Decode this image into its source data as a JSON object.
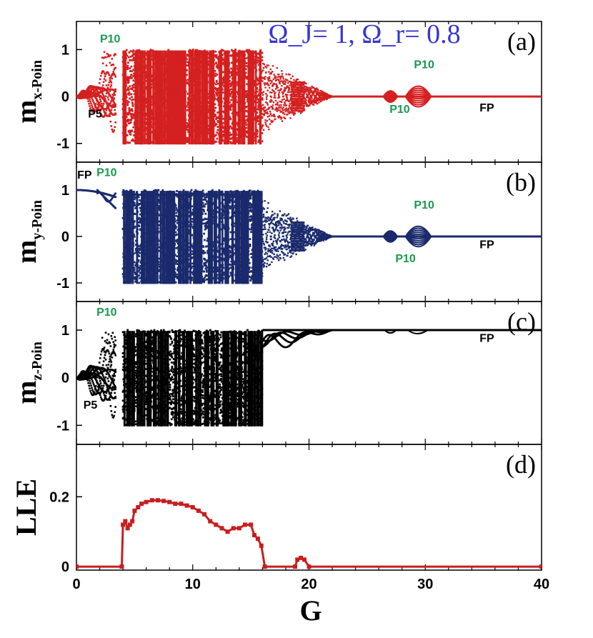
{
  "chart_data": [
    {
      "type": "scatter",
      "panel_label": "(a)",
      "ylabel": "m",
      "ylabel_sub": "x-Poin",
      "xlim": [
        0,
        40
      ],
      "ylim": [
        -1.4,
        1.6
      ],
      "yticks": [
        "-1",
        "0",
        "1"
      ],
      "yticks_values": [
        -1,
        0,
        1
      ],
      "color": "#d42020",
      "parameter_text": "Ω_J= 1, Ω_r= 0.8",
      "parameter_color": "#3535d8",
      "regions": [
        {
          "x": [
            0,
            3.2
          ],
          "kind": "period",
          "note": "P5 / P10 branches around 0"
        },
        {
          "x": [
            4,
            16
          ],
          "kind": "chaos",
          "y": [
            -1,
            1
          ]
        },
        {
          "x": [
            16,
            22
          ],
          "kind": "transition"
        },
        {
          "x": [
            22,
            40
          ],
          "kind": "fixed point",
          "y": 0
        },
        {
          "x": [
            26.5,
            27.5
          ],
          "kind": "period",
          "note": "P10 bubble"
        },
        {
          "x": [
            28.5,
            30.5
          ],
          "kind": "period",
          "note": "P10 bubble"
        }
      ],
      "annotations": [
        {
          "text": "P10",
          "x": 2.9,
          "y": 1.15,
          "color": "#1a9a50"
        },
        {
          "text": "P5",
          "x": 1.6,
          "y": -0.45,
          "color": "#000000"
        },
        {
          "text": "P10",
          "x": 29.9,
          "y": 0.6,
          "color": "#1a9a50"
        },
        {
          "text": "P10",
          "x": 27.8,
          "y": -0.35,
          "color": "#1a9a50"
        },
        {
          "text": "FP",
          "x": 35.3,
          "y": -0.32,
          "color": "#000000"
        }
      ]
    },
    {
      "type": "scatter",
      "panel_label": "(b)",
      "ylabel": "m",
      "ylabel_sub": "y-Poin",
      "xlim": [
        0,
        40
      ],
      "ylim": [
        -1.4,
        1.6
      ],
      "yticks": [
        "-1",
        "0",
        "1"
      ],
      "yticks_values": [
        -1,
        0,
        1
      ],
      "color": "#1a2a6c",
      "regions": [
        {
          "x": [
            0,
            3.2
          ],
          "kind": "fixed point / period",
          "y": 1
        },
        {
          "x": [
            4,
            16
          ],
          "kind": "chaos",
          "y": [
            -1,
            1
          ]
        },
        {
          "x": [
            16,
            22
          ],
          "kind": "transition"
        },
        {
          "x": [
            22,
            40
          ],
          "kind": "fixed point",
          "y": 0
        },
        {
          "x": [
            26.5,
            27.5
          ],
          "kind": "period",
          "note": "P10 bubble"
        },
        {
          "x": [
            28.5,
            30.5
          ],
          "kind": "period",
          "note": "P10 bubble"
        }
      ],
      "annotations": [
        {
          "text": "FP",
          "x": 0.7,
          "y": 1.25,
          "color": "#000000"
        },
        {
          "text": "P10",
          "x": 2.6,
          "y": 1.3,
          "color": "#1a9a50"
        },
        {
          "text": "P10",
          "x": 29.9,
          "y": 0.6,
          "color": "#1a9a50"
        },
        {
          "text": "P10",
          "x": 28.3,
          "y": -0.55,
          "color": "#1a9a50"
        },
        {
          "text": "FP",
          "x": 35.3,
          "y": -0.25,
          "color": "#000000"
        }
      ]
    },
    {
      "type": "scatter",
      "panel_label": "(c)",
      "ylabel": "m",
      "ylabel_sub": "z-Poin",
      "xlim": [
        0,
        40
      ],
      "ylim": [
        -1.4,
        1.6
      ],
      "yticks": [
        "-1",
        "0",
        "1"
      ],
      "yticks_values": [
        -1,
        0,
        1
      ],
      "color": "#000000",
      "regions": [
        {
          "x": [
            0,
            3.2
          ],
          "kind": "period",
          "note": "P5 / P10 branches around 0"
        },
        {
          "x": [
            4,
            16
          ],
          "kind": "chaos",
          "y": [
            -1,
            1
          ]
        },
        {
          "x": [
            16,
            22
          ],
          "kind": "transition",
          "y": [
            0.4,
            1
          ]
        },
        {
          "x": [
            22,
            40
          ],
          "kind": "fixed point",
          "y": 1
        }
      ],
      "annotations": [
        {
          "text": "P10",
          "x": 2.6,
          "y": 1.3,
          "color": "#1a9a50"
        },
        {
          "text": "P5",
          "x": 1.2,
          "y": -0.65,
          "color": "#000000"
        },
        {
          "text": "FP",
          "x": 35.3,
          "y": 0.75,
          "color": "#000000"
        }
      ]
    },
    {
      "type": "line",
      "panel_label": "(d)",
      "ylabel": "LLE",
      "xlabel": "G",
      "xlim": [
        0,
        40
      ],
      "ylim": [
        -0.01,
        0.35
      ],
      "xticks": [
        "0",
        "10",
        "20",
        "30",
        "40"
      ],
      "xticks_values": [
        0,
        10,
        20,
        30,
        40
      ],
      "yticks": [
        "0",
        "0.2"
      ],
      "yticks_values": [
        0,
        0.2
      ],
      "color": "#c81e1e",
      "x": [
        0,
        3.9,
        4.0,
        4.2,
        4.4,
        4.6,
        4.8,
        5.0,
        5.3,
        5.6,
        6.0,
        6.5,
        7.0,
        7.5,
        8.0,
        8.5,
        9.0,
        9.5,
        10.0,
        10.5,
        11.0,
        11.5,
        12.0,
        12.5,
        13.0,
        13.5,
        14.0,
        14.5,
        15.0,
        15.3,
        15.6,
        15.9,
        16.2,
        18.8,
        19.0,
        19.3,
        19.6,
        20.0,
        40
      ],
      "y": [
        0,
        0,
        0.12,
        0.13,
        0.11,
        0.12,
        0.13,
        0.16,
        0.17,
        0.18,
        0.185,
        0.19,
        0.19,
        0.188,
        0.185,
        0.18,
        0.18,
        0.175,
        0.17,
        0.16,
        0.15,
        0.13,
        0.12,
        0.11,
        0.1,
        0.11,
        0.11,
        0.12,
        0.12,
        0.09,
        0.08,
        0.06,
        0,
        0,
        0.02,
        0.025,
        0.02,
        0,
        0
      ]
    }
  ],
  "xlabel": "G"
}
